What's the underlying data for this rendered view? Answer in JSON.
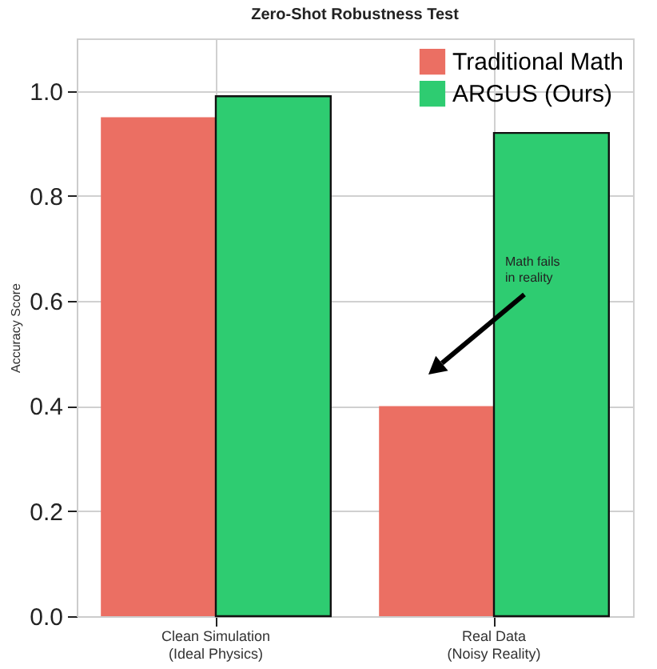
{
  "chart_data": {
    "type": "bar",
    "title": "Zero-Shot Robustness Test",
    "ylabel": "Accuracy Score",
    "categories": [
      "Clean Simulation\n(Ideal Physics)",
      "Real Data\n(Noisy Reality)"
    ],
    "series": [
      {
        "name": "Traditional Math",
        "color": "#eb6f63",
        "values": [
          0.95,
          0.4
        ]
      },
      {
        "name": "ARGUS (Ours)",
        "color": "#2ecc71",
        "values": [
          0.99,
          0.92
        ]
      }
    ],
    "ylim": [
      0,
      1.1
    ],
    "yticks": [
      {
        "value": 0,
        "label": "0.0"
      },
      {
        "value": 0.2,
        "label": "0.2"
      },
      {
        "value": 0.4,
        "label": "0.4"
      },
      {
        "value": 0.6,
        "label": "0.6"
      },
      {
        "value": 0.8,
        "label": "0.8"
      },
      {
        "value": 1,
        "label": "1.0"
      }
    ],
    "grid": true,
    "legend": "top right",
    "annotations": [
      "Math fails\nin reality"
    ]
  }
}
